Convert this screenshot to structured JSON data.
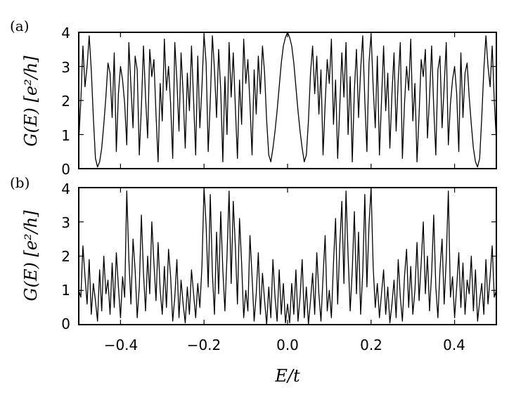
{
  "chart_data": [
    {
      "type": "line",
      "panel_label": "(a)",
      "ylabel": "G(E) [e²/h]",
      "xlabel": "",
      "xlim": [
        -0.5,
        0.5
      ],
      "ylim": [
        0,
        4
      ],
      "xticks": [],
      "yticks": [
        "0",
        "1",
        "2",
        "3",
        "4"
      ],
      "grid": false,
      "symmetric": true,
      "half_series": {
        "x": [
          0.0,
          0.005,
          0.01,
          0.015,
          0.02,
          0.025,
          0.03,
          0.035,
          0.04,
          0.045,
          0.05,
          0.055,
          0.06,
          0.065,
          0.07,
          0.075,
          0.08,
          0.085,
          0.09,
          0.095,
          0.1,
          0.105,
          0.11,
          0.115,
          0.12,
          0.125,
          0.13,
          0.135,
          0.14,
          0.145,
          0.15,
          0.155,
          0.16,
          0.165,
          0.17,
          0.175,
          0.18,
          0.185,
          0.19,
          0.195,
          0.2,
          0.205,
          0.21,
          0.215,
          0.22,
          0.225,
          0.23,
          0.235,
          0.24,
          0.245,
          0.25,
          0.255,
          0.26,
          0.265,
          0.27,
          0.275,
          0.28,
          0.285,
          0.29,
          0.295,
          0.3,
          0.305,
          0.31,
          0.315,
          0.32,
          0.325,
          0.33,
          0.335,
          0.34,
          0.345,
          0.35,
          0.355,
          0.36,
          0.365,
          0.37,
          0.375,
          0.38,
          0.385,
          0.39,
          0.395,
          0.4,
          0.405,
          0.41,
          0.415,
          0.42,
          0.425,
          0.43,
          0.435,
          0.44,
          0.445,
          0.45,
          0.455,
          0.46,
          0.465,
          0.47,
          0.475,
          0.48,
          0.485,
          0.49,
          0.495,
          0.5
        ],
        "y": [
          4.0,
          3.85,
          3.6,
          3.1,
          2.4,
          1.7,
          1.1,
          0.6,
          0.2,
          0.4,
          1.4,
          2.8,
          3.6,
          2.2,
          3.3,
          1.6,
          2.9,
          0.4,
          1.9,
          3.2,
          2.5,
          3.8,
          1.3,
          2.6,
          0.3,
          1.8,
          3.4,
          2.1,
          3.7,
          1.0,
          2.7,
          0.2,
          2.3,
          3.5,
          1.5,
          2.9,
          3.9,
          2.0,
          0.5,
          3.1,
          3.95,
          2.4,
          1.2,
          3.3,
          0.4,
          2.0,
          3.6,
          1.7,
          2.8,
          0.6,
          2.2,
          3.4,
          1.1,
          2.6,
          3.7,
          0.3,
          1.9,
          3.0,
          2.3,
          3.8,
          1.4,
          2.5,
          0.2,
          1.6,
          3.2,
          2.7,
          3.5,
          0.9,
          2.1,
          3.6,
          1.8,
          0.4,
          2.9,
          3.3,
          1.2,
          2.4,
          3.7,
          0.7,
          1.9,
          2.6,
          3.0,
          2.2,
          0.5,
          3.4,
          1.5,
          2.8,
          3.1,
          2.1,
          1.3,
          0.6,
          0.2,
          0.05,
          0.3,
          1.5,
          2.9,
          3.9,
          3.0,
          2.4,
          3.6,
          2.0,
          0.8
        ]
      }
    },
    {
      "type": "line",
      "panel_label": "(b)",
      "ylabel": "G(E) [e²/h]",
      "xlabel": "E/t",
      "xlim": [
        -0.5,
        0.5
      ],
      "ylim": [
        0,
        4
      ],
      "xticks": [
        "−0.4",
        "−0.2",
        "0.0",
        "0.2",
        "0.4"
      ],
      "yticks": [
        "0",
        "1",
        "2",
        "3",
        "4"
      ],
      "grid": false,
      "symmetric": true,
      "half_series": {
        "x": [
          0.0,
          0.005,
          0.01,
          0.015,
          0.02,
          0.025,
          0.03,
          0.035,
          0.04,
          0.045,
          0.05,
          0.055,
          0.06,
          0.065,
          0.07,
          0.075,
          0.08,
          0.085,
          0.09,
          0.095,
          0.1,
          0.105,
          0.11,
          0.115,
          0.12,
          0.125,
          0.13,
          0.135,
          0.14,
          0.145,
          0.15,
          0.155,
          0.16,
          0.165,
          0.17,
          0.175,
          0.18,
          0.185,
          0.19,
          0.195,
          0.2,
          0.205,
          0.21,
          0.215,
          0.22,
          0.225,
          0.23,
          0.235,
          0.24,
          0.245,
          0.25,
          0.255,
          0.26,
          0.265,
          0.27,
          0.275,
          0.28,
          0.285,
          0.29,
          0.295,
          0.3,
          0.305,
          0.31,
          0.315,
          0.32,
          0.325,
          0.33,
          0.335,
          0.34,
          0.345,
          0.35,
          0.355,
          0.36,
          0.365,
          0.37,
          0.375,
          0.38,
          0.385,
          0.39,
          0.395,
          0.4,
          0.405,
          0.41,
          0.415,
          0.42,
          0.425,
          0.43,
          0.435,
          0.44,
          0.445,
          0.45,
          0.455,
          0.46,
          0.465,
          0.47,
          0.475,
          0.48,
          0.485,
          0.49,
          0.495,
          0.5
        ],
        "y": [
          0.6,
          0.05,
          1.2,
          0.3,
          1.6,
          0.1,
          0.8,
          1.9,
          0.2,
          1.1,
          0.0,
          0.7,
          1.5,
          0.3,
          2.1,
          0.9,
          0.1,
          1.4,
          2.6,
          0.4,
          1.0,
          0.2,
          1.8,
          3.1,
          0.6,
          2.3,
          3.6,
          1.2,
          3.9,
          2.0,
          0.4,
          1.6,
          3.3,
          0.9,
          2.7,
          0.3,
          1.5,
          3.8,
          1.1,
          2.9,
          4.0,
          1.7,
          0.5,
          1.2,
          0.2,
          0.9,
          1.6,
          0.3,
          1.1,
          0.05,
          0.6,
          1.3,
          0.2,
          1.9,
          0.8,
          0.1,
          1.4,
          2.2,
          0.5,
          1.7,
          0.3,
          1.0,
          2.4,
          0.7,
          1.8,
          3.0,
          0.9,
          2.0,
          0.4,
          1.5,
          3.2,
          1.1,
          0.2,
          1.6,
          2.5,
          0.6,
          1.9,
          3.9,
          0.8,
          1.4,
          0.2,
          1.1,
          2.1,
          0.5,
          1.8,
          0.3,
          1.3,
          0.9,
          2.0,
          0.4,
          1.6,
          0.1,
          0.7,
          1.2,
          0.3,
          1.9,
          0.6,
          1.4,
          2.3,
          0.8,
          1.0
        ]
      }
    }
  ]
}
